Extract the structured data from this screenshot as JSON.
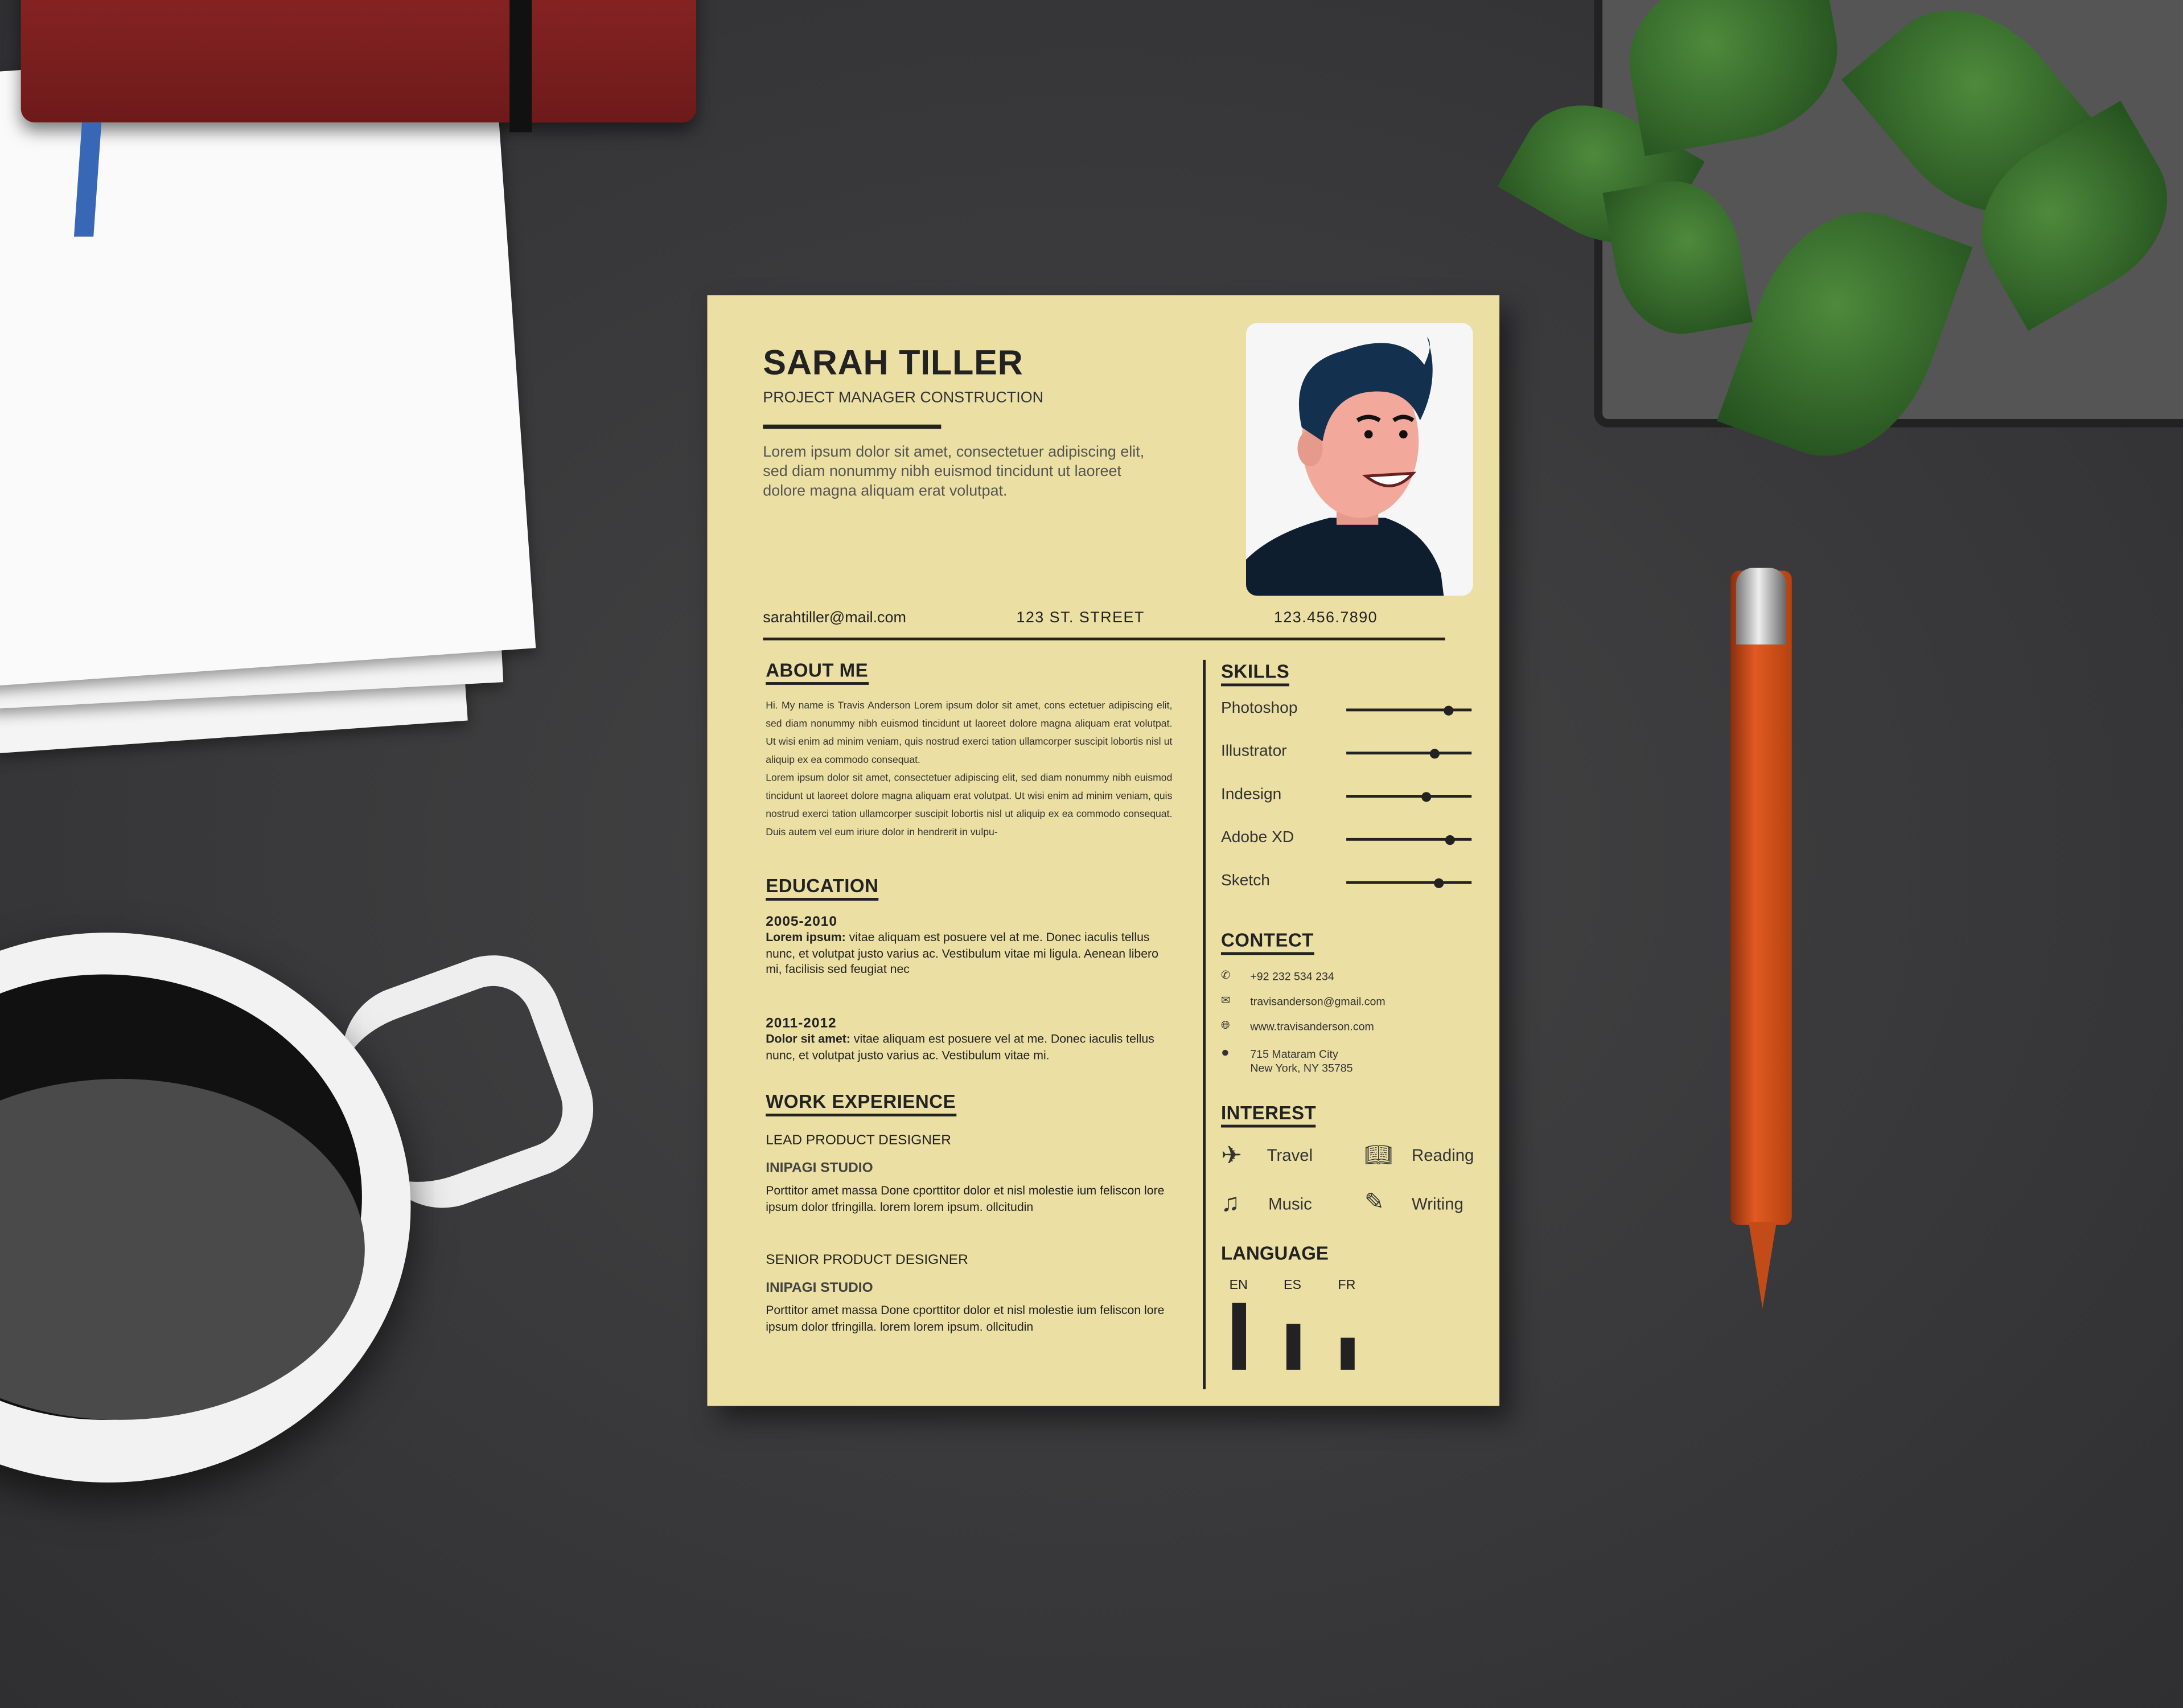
{
  "resume": {
    "name": "SARAH TILLER",
    "role": "PROJECT MANAGER CONSTRUCTION",
    "intro": "Lorem ipsum dolor sit amet, consectetuer adipiscing elit, sed diam nonummy nibh euismod tincidunt ut laoreet dolore magna aliquam erat volutpat.",
    "email": "sarahtiller@mail.com",
    "address": "123 ST. STREET",
    "phone": "123.456.7890",
    "about": {
      "heading": "ABOUT ME",
      "text1": "Hi. My name is Travis Anderson Lorem ipsum dolor sit amet, cons ectetuer adipiscing elit, sed diam nonummy nibh euismod tincidunt ut laoreet dolore magna aliquam erat volutpat. Ut wisi enim ad minim veniam, quis nostrud exerci tation ullamcorper suscipit lobortis nisl ut aliquip ex ea commodo consequat.",
      "text2": "Lorem ipsum dolor sit amet, consectetuer adipiscing elit, sed diam nonummy nibh euismod tincidunt ut laoreet dolore magna aliquam erat volutpat. Ut wisi enim ad minim veniam, quis nostrud exerci tation ullamcorper suscipit lobortis nisl ut aliquip ex ea commodo consequat. Duis autem vel eum iriure dolor in hendrerit in vulpu-"
    },
    "education": {
      "heading": "EDUCATION",
      "items": [
        {
          "years": "2005-2010",
          "label": "Lorem ipsum:",
          "text": " vitae aliquam est posuere vel at me. Donec iaculis tellus nunc, et volutpat justo varius ac. Vestibulum vitae mi ligula. Aenean libero mi, facilisis sed feugiat nec"
        },
        {
          "years": "2011-2012",
          "label": "Dolor sit amet:",
          "text": " vitae aliquam est posuere vel at me. Donec iaculis tellus nunc, et volutpat justo varius ac. Vestibulum vitae mi."
        }
      ]
    },
    "work": {
      "heading": "WORK EXPERIENCE",
      "items": [
        {
          "title": "LEAD PRODUCT DESIGNER",
          "company": "INIPAGI STUDIO",
          "text": "Porttitor amet massa Done cporttitor dolor et nisl molestie ium feliscon lore  ipsum dolor tfringilla. lorem lorem ipsum. ollcitudin"
        },
        {
          "title": "SENIOR PRODUCT DESIGNER",
          "company": "INIPAGI STUDIO",
          "text": "Porttitor amet massa Done cporttitor dolor et nisl molestie ium feliscon lore  ipsum dolor tfringilla. lorem lorem ipsum. ollcitudin"
        }
      ]
    },
    "skills": {
      "heading": "SKILLS",
      "items": [
        {
          "name": "Photoshop",
          "level": 0.82
        },
        {
          "name": "Illustrator",
          "level": 0.7
        },
        {
          "name": "Indesign",
          "level": 0.64
        },
        {
          "name": "Adobe XD",
          "level": 0.83
        },
        {
          "name": "Sketch",
          "level": 0.74
        }
      ]
    },
    "contact": {
      "heading": "CONTECT",
      "phone": "+92 232 534 234",
      "email": "travisanderson@gmail.com",
      "web": "www.travisanderson.com",
      "address1": "715 Mataram City",
      "address2": "New York, NY 35785"
    },
    "interest": {
      "heading": "INTEREST",
      "items": [
        {
          "label": "Travel",
          "icon": "airplane-icon"
        },
        {
          "label": "Reading",
          "icon": "book-icon"
        },
        {
          "label": "Music",
          "icon": "music-note-icon"
        },
        {
          "label": "Writing",
          "icon": "pencil-icon"
        }
      ]
    },
    "language": {
      "heading": "LANGUAGE",
      "items": [
        {
          "code": "EN",
          "level": 100
        },
        {
          "code": "ES",
          "level": 69
        },
        {
          "code": "FR",
          "level": 48
        }
      ]
    },
    "colors": {
      "paper": "#ebdfa3",
      "ink": "#222222"
    }
  }
}
